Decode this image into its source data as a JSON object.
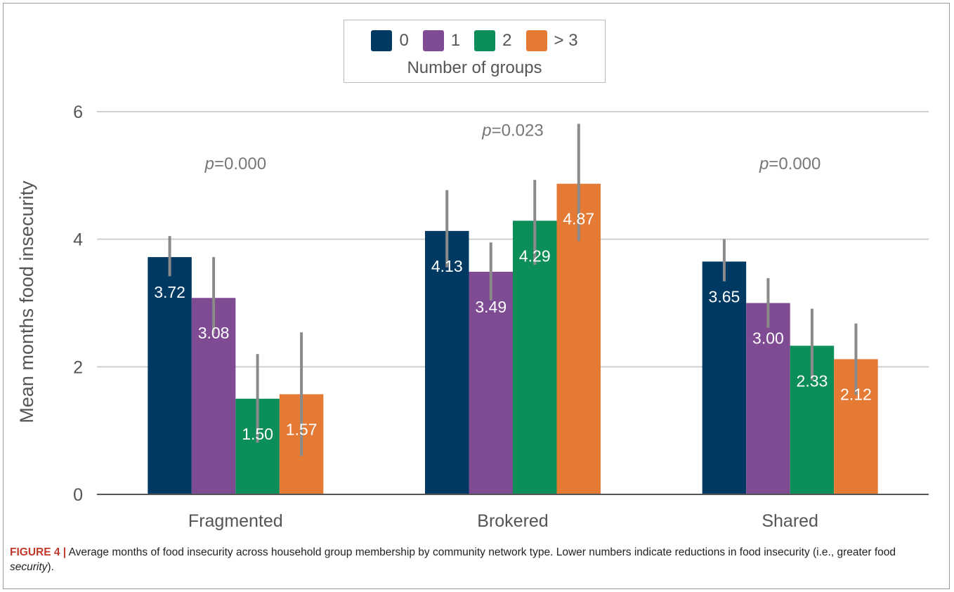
{
  "chart_data": {
    "type": "bar",
    "title": "",
    "xlabel": "",
    "ylabel": "Mean months food insecurity",
    "ylim": [
      0,
      6
    ],
    "yticks": [
      0,
      2,
      4,
      6
    ],
    "grid": true,
    "legend_placement": "top-center",
    "legend_title": "Number of groups",
    "categories": [
      "Fragmented",
      "Brokered",
      "Shared"
    ],
    "series": [
      {
        "name": "0",
        "color": "#003a63",
        "values": [
          3.72,
          4.13,
          3.65
        ],
        "labels": [
          "3.72",
          "4.13",
          "3.65"
        ],
        "error_low": [
          3.42,
          3.56,
          3.34
        ],
        "error_high": [
          4.05,
          4.77,
          4.0
        ]
      },
      {
        "name": "1",
        "color": "#7f4b92",
        "values": [
          3.08,
          3.49,
          3.0
        ],
        "labels": [
          "3.08",
          "3.49",
          "3.00"
        ],
        "error_low": [
          2.52,
          3.04,
          2.61
        ],
        "error_high": [
          3.72,
          3.95,
          3.39
        ]
      },
      {
        "name": "2",
        "color": "#0c8e58",
        "values": [
          1.5,
          4.29,
          2.33
        ],
        "labels": [
          "1.50",
          "4.29",
          "2.33"
        ],
        "error_low": [
          0.81,
          3.6,
          1.79
        ],
        "error_high": [
          2.2,
          4.93,
          2.91
        ]
      },
      {
        "name": "> 3",
        "color": "#e57a34",
        "values": [
          1.57,
          4.87,
          2.12
        ],
        "labels": [
          "1.57",
          "4.87",
          "2.12"
        ],
        "error_low": [
          0.6,
          3.97,
          1.56
        ],
        "error_high": [
          2.54,
          5.81,
          2.68
        ]
      }
    ],
    "annotations": [
      {
        "category": "Fragmented",
        "prefix": "p",
        "text": "=0.000",
        "y": 5.1
      },
      {
        "category": "Brokered",
        "prefix": "p",
        "text": "=0.023",
        "y": 5.62
      },
      {
        "category": "Shared",
        "prefix": "p",
        "text": "=0.000",
        "y": 5.1
      }
    ]
  },
  "caption": {
    "label": "FIGURE 4 |",
    "text_before": " Average months of food insecurity across household group membership by community network type. Lower numbers indicate reductions in food insecurity (i.e., greater food ",
    "emphasis": "security",
    "text_after": ")."
  }
}
